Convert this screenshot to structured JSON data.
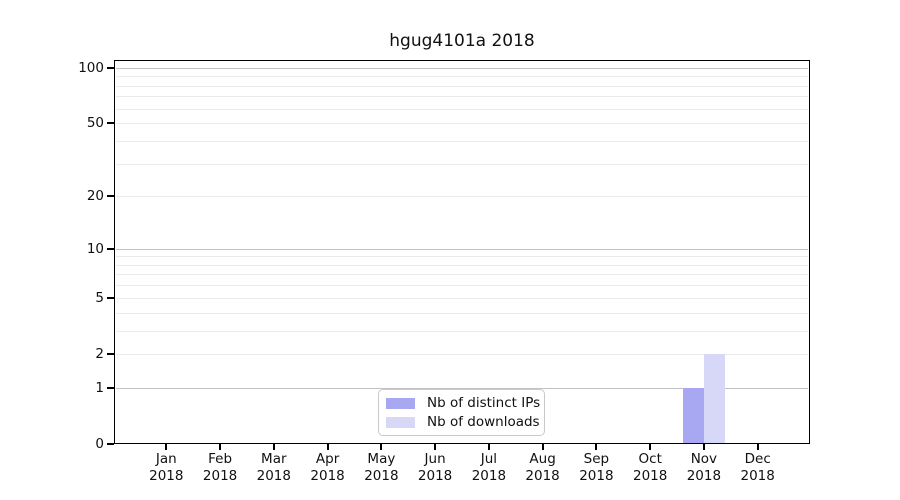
{
  "chart_data": {
    "type": "bar",
    "title": "hgug4101a 2018",
    "x": {
      "categories": [
        "Jan",
        "Feb",
        "Mar",
        "Apr",
        "May",
        "Jun",
        "Jul",
        "Aug",
        "Sep",
        "Oct",
        "Nov",
        "Dec"
      ],
      "year": "2018"
    },
    "series": [
      {
        "name": "Nb of distinct IPs",
        "color": "#a7a7f2",
        "values": [
          0,
          0,
          0,
          0,
          0,
          0,
          0,
          0,
          0,
          0,
          1,
          0
        ]
      },
      {
        "name": "Nb of downloads",
        "color": "#d7d7f8",
        "values": [
          0,
          0,
          0,
          0,
          0,
          0,
          0,
          0,
          0,
          0,
          2,
          0
        ]
      }
    ],
    "y_axis": {
      "scale": "log1p",
      "ticks": [
        0,
        1,
        2,
        5,
        10,
        20,
        50,
        100
      ],
      "major_gridlines": [
        1,
        10,
        100
      ],
      "minor_gridlines": [
        2,
        3,
        4,
        5,
        6,
        7,
        8,
        9,
        20,
        30,
        40,
        50,
        60,
        70,
        80,
        90
      ],
      "top_value": 110
    },
    "legend": {
      "position": "bottom-center"
    },
    "grid": "horizontal",
    "colors": {
      "major_grid": "#c3c3c7",
      "minor_grid": "#ebebeb",
      "axis": "#000000",
      "background": "#ffffff"
    }
  }
}
